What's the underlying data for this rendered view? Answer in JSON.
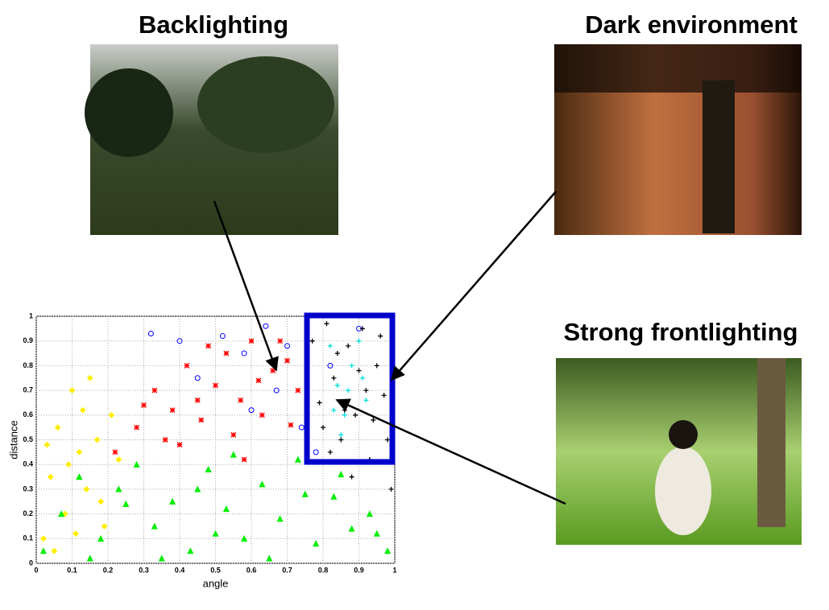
{
  "photos": {
    "backlighting": "Backlighting",
    "dark": "Dark environment",
    "frontlighting": "Strong frontlighting"
  },
  "chart_data": {
    "type": "scatter",
    "xlabel": "angle",
    "ylabel": "distance",
    "xlim": [
      0,
      1
    ],
    "ylim": [
      0,
      1
    ],
    "xticks": [
      0,
      0.1,
      0.2,
      0.3,
      0.4,
      0.5,
      0.6,
      0.7,
      0.8,
      0.9,
      1
    ],
    "yticks": [
      0,
      0.1,
      0.2,
      0.3,
      0.4,
      0.5,
      0.6,
      0.7,
      0.8,
      0.9,
      1
    ],
    "grid": true,
    "series": [
      {
        "color": "#ffee00",
        "marker": "diamond",
        "x": [
          0.02,
          0.04,
          0.06,
          0.08,
          0.1,
          0.12,
          0.14,
          0.15,
          0.17,
          0.19,
          0.21,
          0.05,
          0.09,
          0.13,
          0.18,
          0.03,
          0.11,
          0.23
        ],
        "y": [
          0.1,
          0.35,
          0.55,
          0.2,
          0.7,
          0.45,
          0.3,
          0.75,
          0.5,
          0.15,
          0.6,
          0.05,
          0.4,
          0.62,
          0.25,
          0.48,
          0.12,
          0.42
        ]
      },
      {
        "color": "#ff0000",
        "marker": "star",
        "x": [
          0.22,
          0.28,
          0.33,
          0.38,
          0.42,
          0.46,
          0.5,
          0.53,
          0.57,
          0.6,
          0.63,
          0.66,
          0.7,
          0.73,
          0.36,
          0.45,
          0.55,
          0.62,
          0.68,
          0.4,
          0.48,
          0.58,
          0.71,
          0.3
        ],
        "y": [
          0.45,
          0.55,
          0.7,
          0.62,
          0.8,
          0.58,
          0.72,
          0.85,
          0.66,
          0.9,
          0.6,
          0.78,
          0.82,
          0.7,
          0.5,
          0.66,
          0.52,
          0.74,
          0.9,
          0.48,
          0.88,
          0.42,
          0.56,
          0.64
        ]
      },
      {
        "color": "#00ee00",
        "marker": "triangle",
        "x": [
          0.02,
          0.07,
          0.12,
          0.18,
          0.23,
          0.28,
          0.33,
          0.38,
          0.43,
          0.48,
          0.53,
          0.58,
          0.63,
          0.68,
          0.73,
          0.78,
          0.83,
          0.88,
          0.93,
          0.98,
          0.15,
          0.35,
          0.55,
          0.75,
          0.95,
          0.25,
          0.45,
          0.65,
          0.85,
          0.5
        ],
        "y": [
          0.05,
          0.2,
          0.35,
          0.1,
          0.3,
          0.4,
          0.15,
          0.25,
          0.05,
          0.38,
          0.22,
          0.1,
          0.32,
          0.18,
          0.42,
          0.08,
          0.27,
          0.14,
          0.2,
          0.05,
          0.02,
          0.02,
          0.44,
          0.28,
          0.12,
          0.24,
          0.3,
          0.02,
          0.36,
          0.12
        ]
      },
      {
        "color": "#0000ff",
        "marker": "circle",
        "x": [
          0.32,
          0.4,
          0.52,
          0.58,
          0.64,
          0.67,
          0.7,
          0.74,
          0.78,
          0.82,
          0.9,
          0.6,
          0.45
        ],
        "y": [
          0.93,
          0.9,
          0.92,
          0.85,
          0.96,
          0.7,
          0.88,
          0.55,
          0.45,
          0.8,
          0.95,
          0.62,
          0.75
        ]
      },
      {
        "color": "#000000",
        "marker": "plus",
        "x": [
          0.77,
          0.79,
          0.81,
          0.83,
          0.85,
          0.87,
          0.89,
          0.91,
          0.93,
          0.95,
          0.97,
          0.99,
          0.8,
          0.84,
          0.88,
          0.92,
          0.96,
          0.98,
          0.82,
          0.9,
          0.94,
          0.86
        ],
        "y": [
          0.9,
          0.65,
          0.97,
          0.75,
          0.5,
          0.88,
          0.6,
          0.95,
          0.42,
          0.8,
          0.68,
          0.3,
          0.55,
          0.85,
          0.35,
          0.7,
          0.92,
          0.5,
          0.45,
          0.78,
          0.58,
          0.62
        ]
      },
      {
        "color": "#00dddd",
        "marker": "plus",
        "x": [
          0.82,
          0.84,
          0.86,
          0.88,
          0.9,
          0.92,
          0.85,
          0.87,
          0.91,
          0.83
        ],
        "y": [
          0.88,
          0.72,
          0.6,
          0.8,
          0.9,
          0.66,
          0.52,
          0.7,
          0.75,
          0.62
        ]
      }
    ]
  }
}
